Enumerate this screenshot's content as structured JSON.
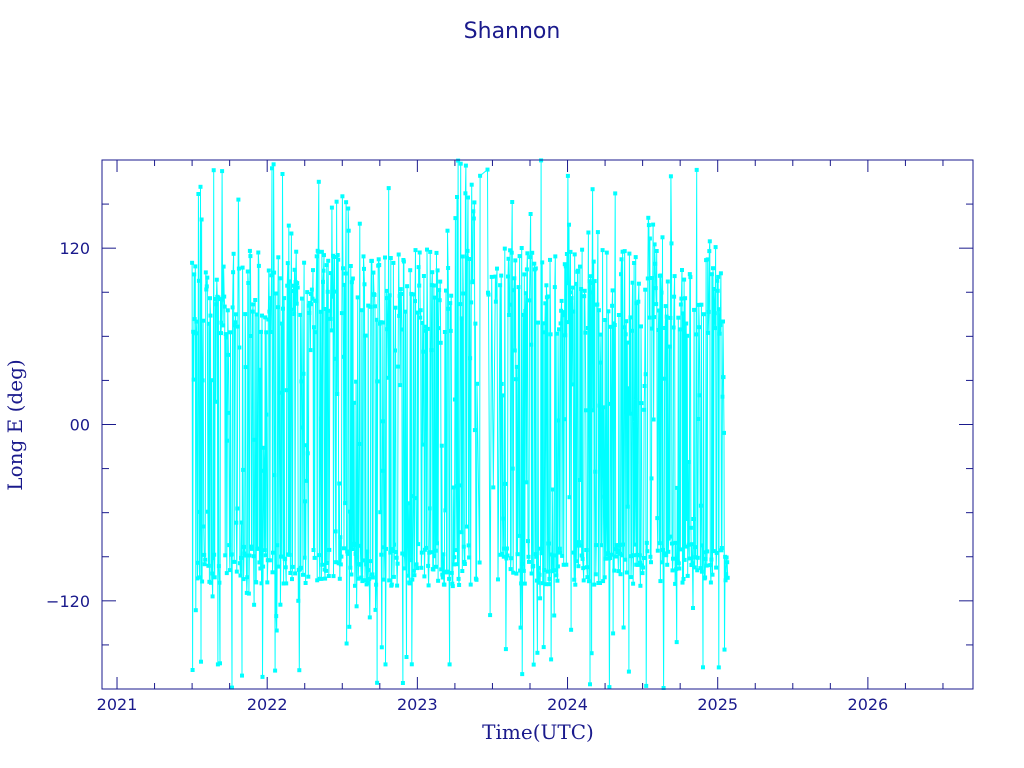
{
  "chart_data": {
    "type": "scatter",
    "title": "Shannon",
    "xlabel": "Time(UTC)",
    "ylabel": "Long E (deg)",
    "xlim": [
      2020.9,
      2026.7
    ],
    "ylim": [
      -180,
      180
    ],
    "x_ticks": [
      2021,
      2022,
      2023,
      2024,
      2025,
      2026
    ],
    "x_tick_labels": [
      "2021",
      "2022",
      "2023",
      "2024",
      "2025",
      "2026"
    ],
    "y_ticks": [
      -120,
      0,
      120
    ],
    "y_tick_labels": [
      "−120",
      "00",
      "120"
    ],
    "grid": false,
    "legend": "none",
    "series": [
      {
        "x_range": [
          2021.5,
          2025.07
        ],
        "y_range": [
          -180,
          180
        ],
        "description_visible": "dense connected longitude samples wrapping between -180 and 180",
        "dense_bands": [
          {
            "y": [
              60,
              120
            ],
            "x_range": [
              2021.5,
              2025.05
            ]
          },
          {
            "y": [
              -110,
              -80
            ],
            "x_range": [
              2021.5,
              2025.05
            ]
          }
        ],
        "gaps": [
          [
            2023.4,
            2023.55
          ]
        ]
      }
    ],
    "colors": {
      "series": "#00ffff",
      "axes": "#1a1a8c"
    }
  }
}
